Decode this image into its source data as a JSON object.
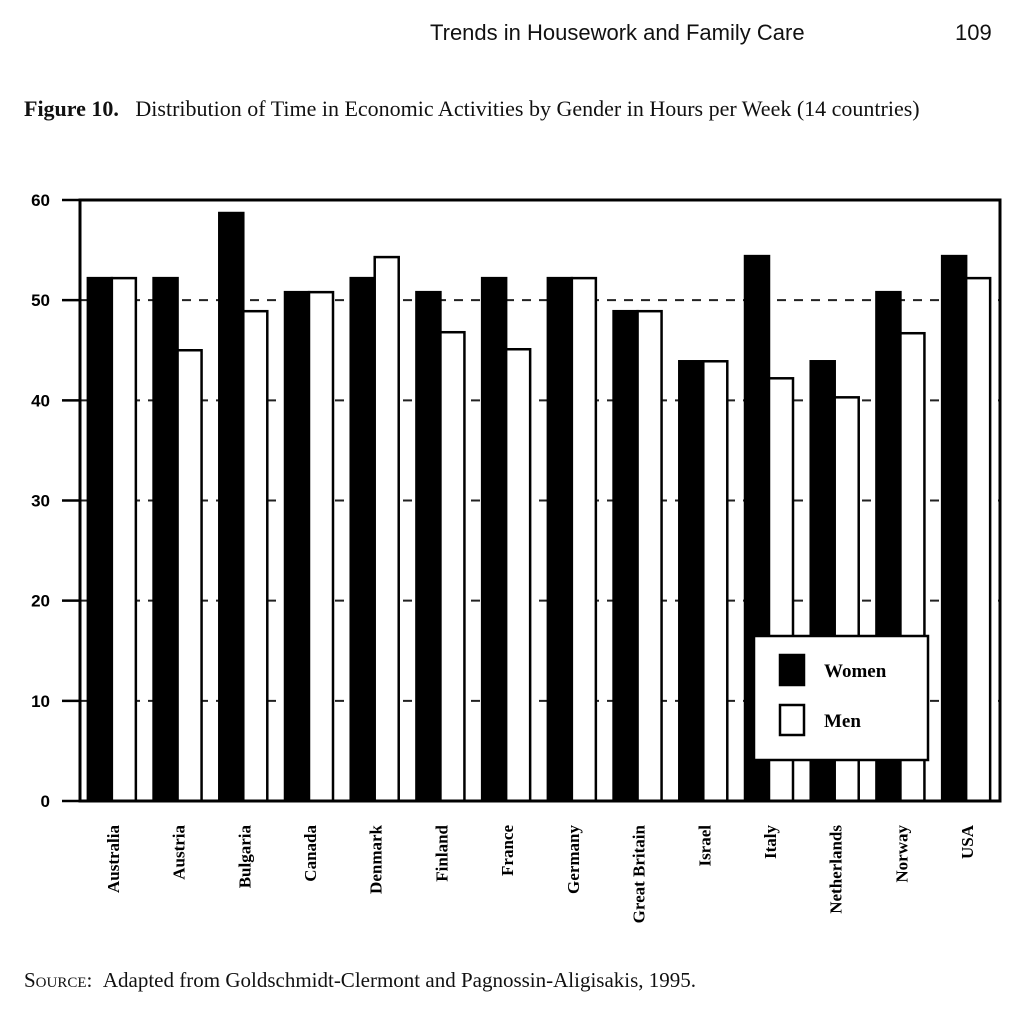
{
  "header": {
    "running_title": "Trends in Housework and Family Care",
    "page_number": "109"
  },
  "caption": {
    "label": "Figure 10.",
    "text": "Distribution of Time in Economic Activities by Gender in Hours per Week (14 countries)"
  },
  "source": {
    "label": "Source:",
    "text": "Adapted from Goldschmidt-Clermont and Pagnossin-Aligisakis, 1995."
  },
  "chart_data": {
    "type": "bar",
    "title": "",
    "xlabel": "",
    "ylabel": "",
    "ylim": [
      0,
      60
    ],
    "yticks": [
      "0",
      "10",
      "20",
      "30",
      "40",
      "50",
      "60"
    ],
    "grid": "dashed horizontal",
    "legend_placement": "bottom-right",
    "categories": [
      "Australia",
      "Austria",
      "Bulgaria",
      "Canada",
      "Denmark",
      "Finland",
      "France",
      "Germany",
      "Great Britain",
      "Israel",
      "Italy",
      "Netherlands",
      "Norway",
      "USA"
    ],
    "series": [
      {
        "name": "Women",
        "color": "#000000",
        "values": [
          52.2,
          52.2,
          58.7,
          50.8,
          52.2,
          50.8,
          52.2,
          52.2,
          48.9,
          43.9,
          54.4,
          43.9,
          50.8,
          54.4
        ]
      },
      {
        "name": "Men",
        "color": "#ffffff",
        "values": [
          52.2,
          45.0,
          48.9,
          50.8,
          54.3,
          46.8,
          45.1,
          52.2,
          48.9,
          43.9,
          42.2,
          40.3,
          46.7,
          52.2
        ]
      }
    ]
  }
}
